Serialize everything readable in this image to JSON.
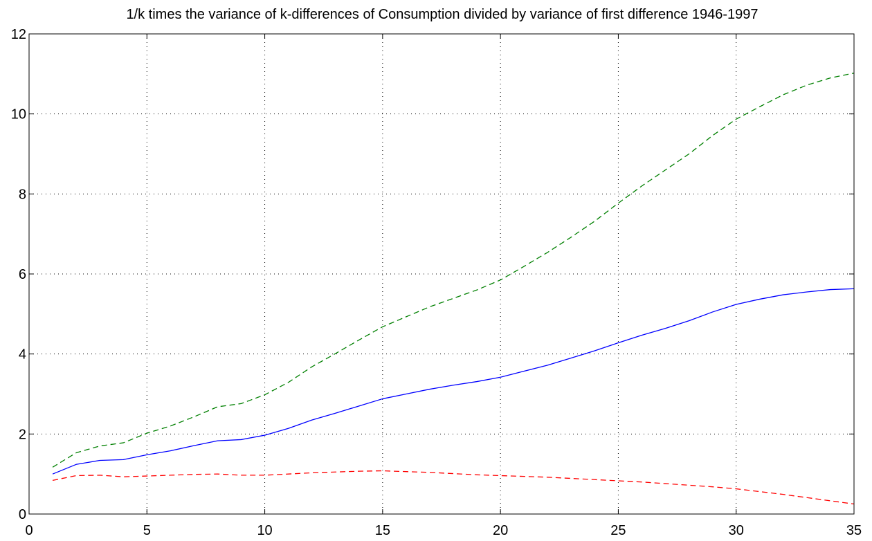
{
  "chart_data": {
    "type": "line",
    "title": "1/k times the variance of k-differences of Consumption divided by variance of first difference 1946-1997",
    "xlabel": "",
    "ylabel": "",
    "xlim": [
      0,
      35
    ],
    "ylim": [
      0,
      12
    ],
    "xticks": [
      "0",
      "5",
      "10",
      "15",
      "20",
      "25",
      "30",
      "35"
    ],
    "yticks": [
      "0",
      "2",
      "4",
      "6",
      "8",
      "10",
      "12"
    ],
    "grid": true,
    "legend": "none",
    "x": [
      1,
      2,
      3,
      4,
      5,
      6,
      7,
      8,
      9,
      10,
      11,
      12,
      13,
      14,
      15,
      16,
      17,
      18,
      19,
      20,
      21,
      22,
      23,
      24,
      25,
      26,
      27,
      28,
      29,
      30,
      31,
      32,
      33,
      34,
      35
    ],
    "series": [
      {
        "color": "#0000ff",
        "style": "solid",
        "values": [
          1.0,
          1.24,
          1.34,
          1.36,
          1.48,
          1.58,
          1.71,
          1.83,
          1.86,
          1.97,
          2.14,
          2.35,
          2.52,
          2.7,
          2.88,
          3.0,
          3.12,
          3.22,
          3.31,
          3.42,
          3.57,
          3.72,
          3.9,
          4.08,
          4.28,
          4.47,
          4.64,
          4.83,
          5.05,
          5.24,
          5.37,
          5.48,
          5.55,
          5.61,
          5.63
        ]
      },
      {
        "color": "#008000",
        "style": "dashed",
        "values": [
          1.17,
          1.53,
          1.7,
          1.78,
          2.02,
          2.2,
          2.43,
          2.68,
          2.76,
          2.98,
          3.29,
          3.68,
          4.01,
          4.35,
          4.68,
          4.93,
          5.18,
          5.39,
          5.6,
          5.85,
          6.19,
          6.54,
          6.92,
          7.32,
          7.77,
          8.2,
          8.6,
          9.0,
          9.46,
          9.87,
          10.18,
          10.48,
          10.72,
          10.9,
          11.02
        ]
      },
      {
        "color": "#ff0000",
        "style": "dashed",
        "values": [
          0.84,
          0.96,
          0.97,
          0.93,
          0.95,
          0.97,
          0.99,
          1.0,
          0.97,
          0.97,
          1.0,
          1.03,
          1.05,
          1.07,
          1.08,
          1.06,
          1.04,
          1.01,
          0.98,
          0.96,
          0.94,
          0.92,
          0.89,
          0.86,
          0.83,
          0.8,
          0.76,
          0.72,
          0.68,
          0.63,
          0.56,
          0.49,
          0.41,
          0.33,
          0.25
        ]
      }
    ]
  }
}
